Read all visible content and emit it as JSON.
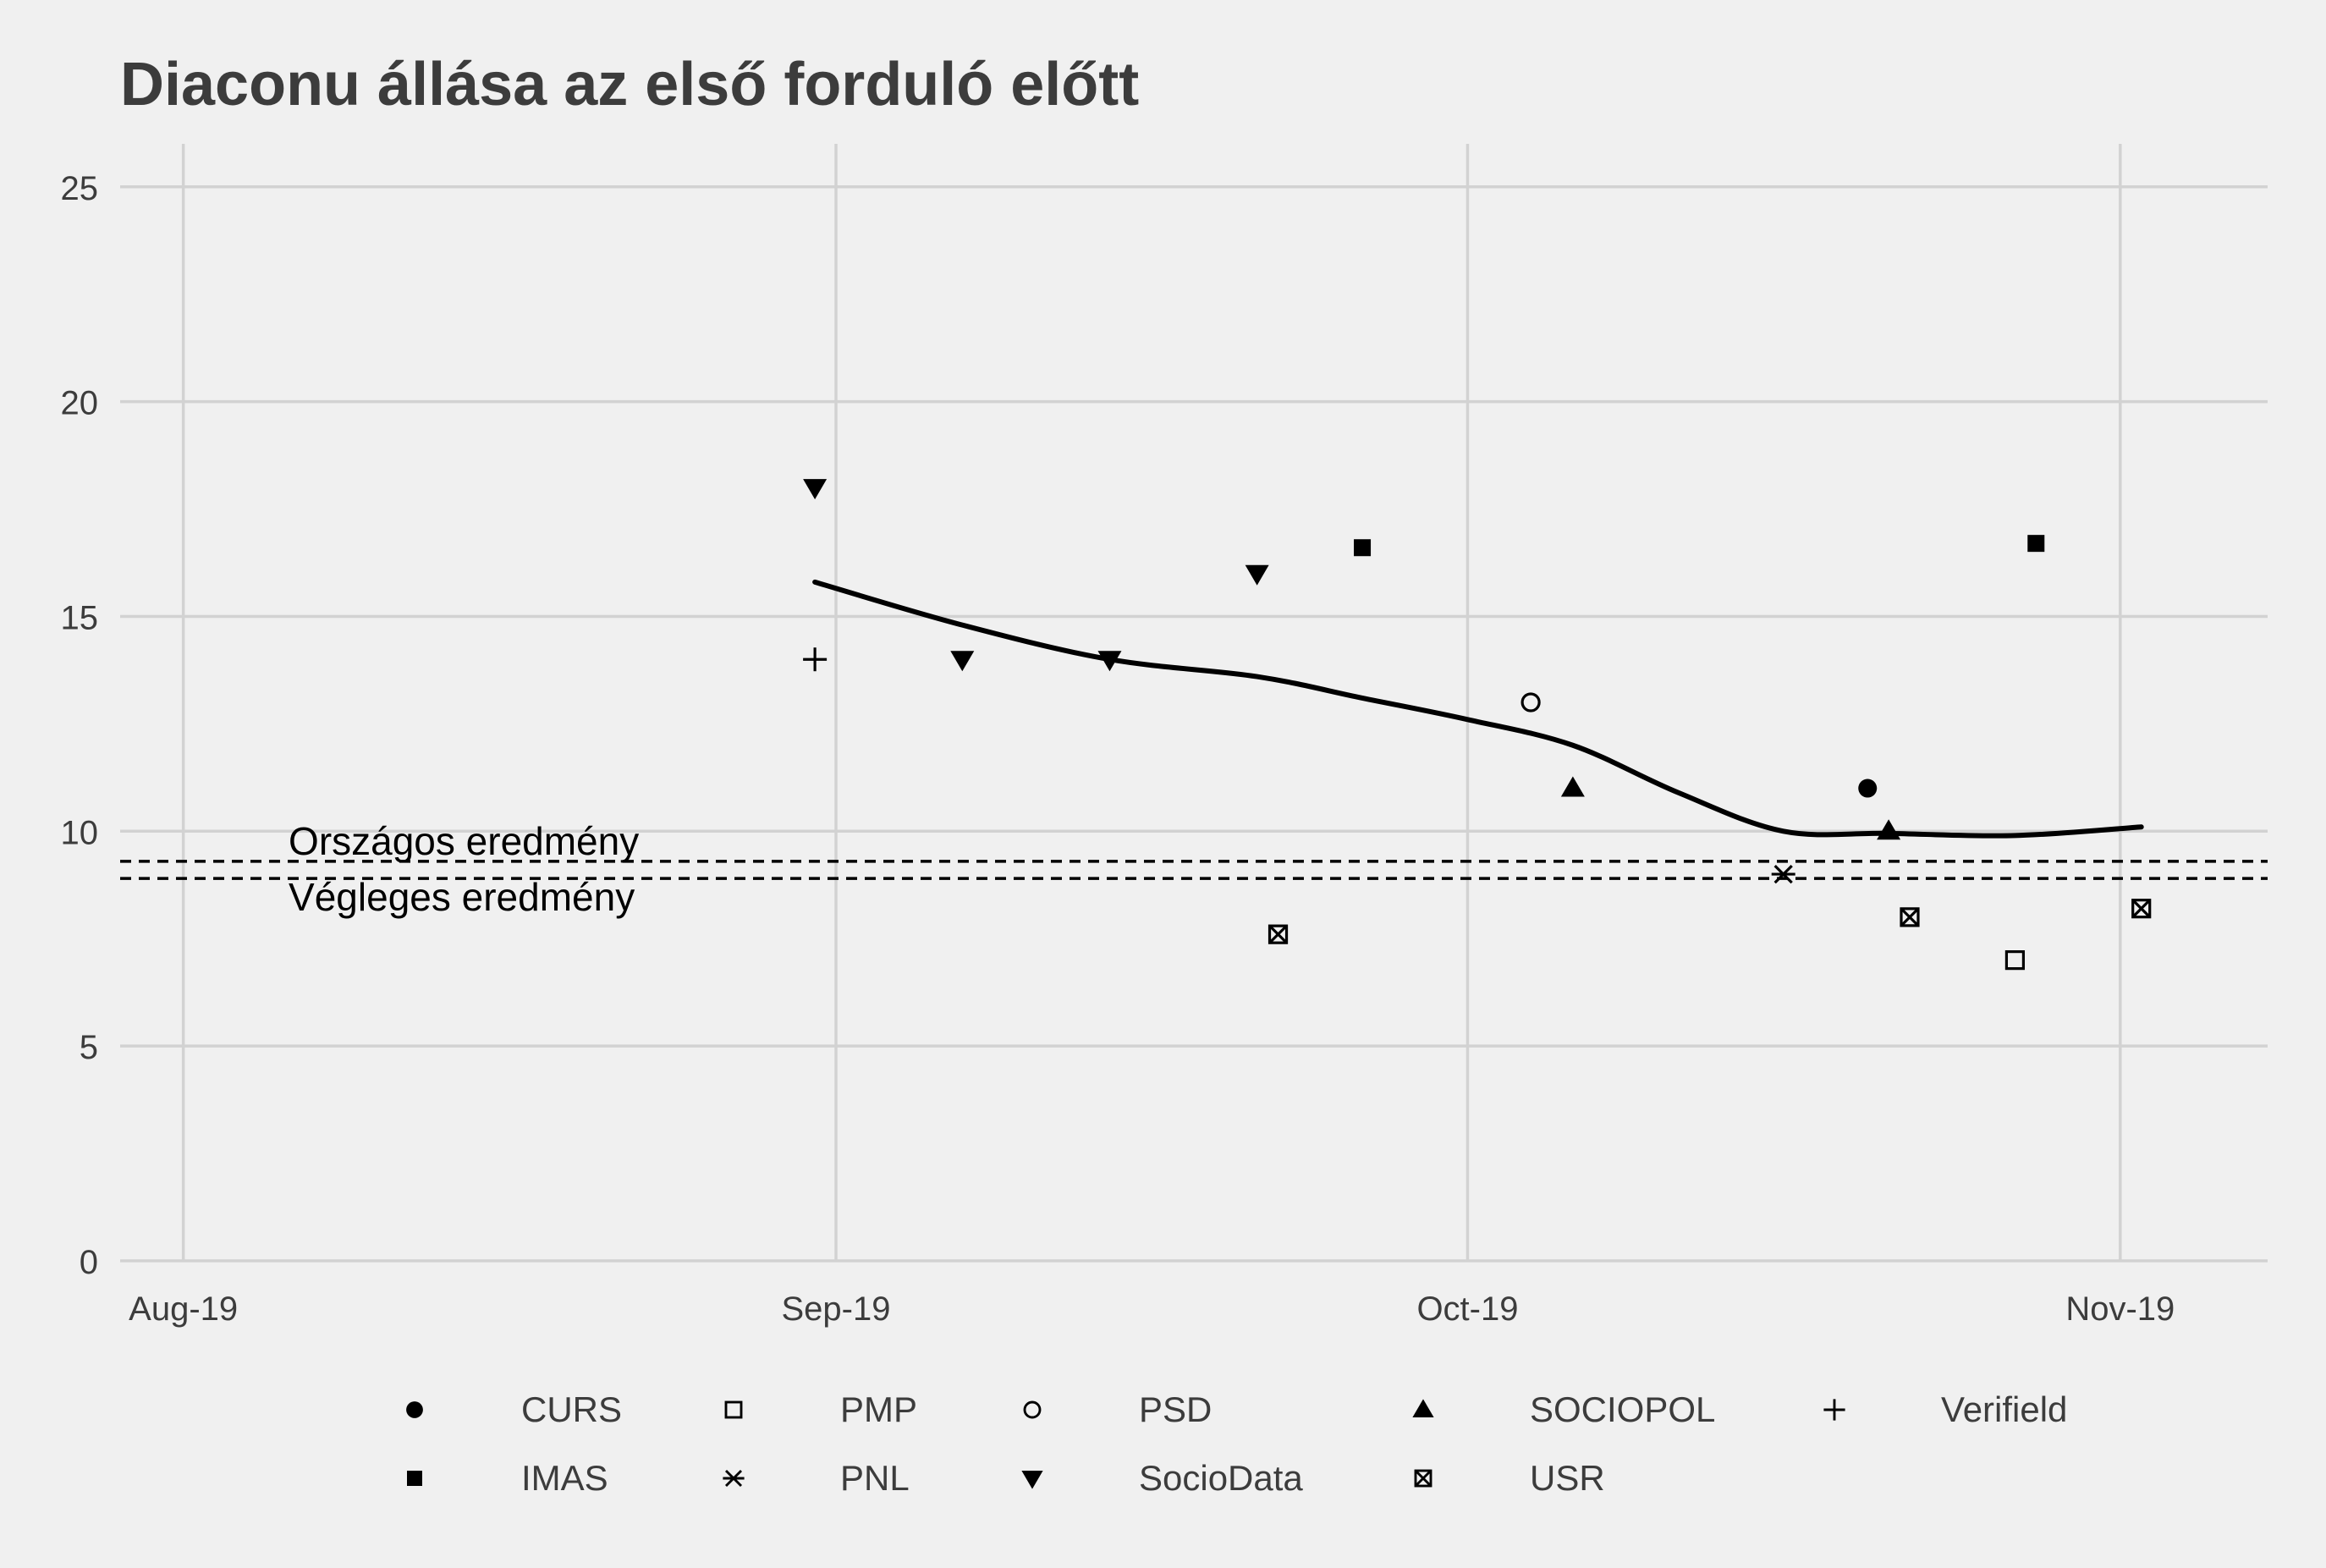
{
  "chart_data": {
    "type": "scatter",
    "title": "Diaconu állása az első forduló előtt",
    "xlabel": "",
    "ylabel": "",
    "ylim": [
      0,
      26
    ],
    "xlim": [
      "2019-07-29",
      "2019-11-08"
    ],
    "x_ticks": [
      {
        "date": "2019-08-01",
        "label": "Aug-19"
      },
      {
        "date": "2019-09-01",
        "label": "Sep-19"
      },
      {
        "date": "2019-10-01",
        "label": "Oct-19"
      },
      {
        "date": "2019-11-01",
        "label": "Nov-19"
      }
    ],
    "y_ticks": [
      0,
      5,
      10,
      15,
      20,
      25
    ],
    "grid": true,
    "legend_position": "bottom",
    "series": [
      {
        "name": "CURS",
        "marker": "filled-circle",
        "points": [
          {
            "x": "2019-10-20",
            "y": 11.0
          }
        ]
      },
      {
        "name": "IMAS",
        "marker": "filled-square",
        "points": [
          {
            "x": "2019-09-26",
            "y": 16.6
          },
          {
            "x": "2019-10-28",
            "y": 16.7
          }
        ]
      },
      {
        "name": "PMP",
        "marker": "open-square",
        "points": [
          {
            "x": "2019-10-27",
            "y": 7.0
          }
        ]
      },
      {
        "name": "PNL",
        "marker": "asterisk",
        "points": [
          {
            "x": "2019-10-16",
            "y": 9.0
          }
        ]
      },
      {
        "name": "PSD",
        "marker": "open-circle",
        "points": [
          {
            "x": "2019-10-04",
            "y": 13.0
          }
        ]
      },
      {
        "name": "SocioData",
        "marker": "filled-triangle-down",
        "points": [
          {
            "x": "2019-08-31",
            "y": 18.0
          },
          {
            "x": "2019-09-07",
            "y": 14.0
          },
          {
            "x": "2019-09-14",
            "y": 14.0
          },
          {
            "x": "2019-09-21",
            "y": 16.0
          }
        ]
      },
      {
        "name": "SOCIOPOL",
        "marker": "filled-triangle-up",
        "points": [
          {
            "x": "2019-10-06",
            "y": 11.0
          },
          {
            "x": "2019-10-21",
            "y": 10.0
          }
        ]
      },
      {
        "name": "USR",
        "marker": "boxed-x",
        "points": [
          {
            "x": "2019-09-22",
            "y": 7.6
          },
          {
            "x": "2019-10-22",
            "y": 8.0
          },
          {
            "x": "2019-11-02",
            "y": 8.2
          }
        ]
      },
      {
        "name": "Verifield",
        "marker": "plus",
        "points": [
          {
            "x": "2019-08-31",
            "y": 14.0
          }
        ]
      }
    ],
    "trend_line": [
      {
        "x": "2019-08-31",
        "y": 15.8
      },
      {
        "x": "2019-09-07",
        "y": 14.8
      },
      {
        "x": "2019-09-14",
        "y": 14.0
      },
      {
        "x": "2019-09-21",
        "y": 13.6
      },
      {
        "x": "2019-09-26",
        "y": 13.1
      },
      {
        "x": "2019-10-01",
        "y": 12.6
      },
      {
        "x": "2019-10-06",
        "y": 12.0
      },
      {
        "x": "2019-10-11",
        "y": 10.9
      },
      {
        "x": "2019-10-16",
        "y": 10.0
      },
      {
        "x": "2019-10-21",
        "y": 9.95
      },
      {
        "x": "2019-10-27",
        "y": 9.9
      },
      {
        "x": "2019-11-02",
        "y": 10.1
      }
    ],
    "reference_lines": [
      {
        "label": "Országos eredmény",
        "y": 9.3,
        "style": "dashed",
        "label_position": "above"
      },
      {
        "label": "Végleges eredmény",
        "y": 8.9,
        "style": "dashed",
        "label_position": "below"
      }
    ]
  },
  "legend_order": [
    "CURS",
    "PMP",
    "PSD",
    "SOCIOPOL",
    "Verifield",
    "IMAS",
    "PNL",
    "SocioData",
    "USR"
  ]
}
